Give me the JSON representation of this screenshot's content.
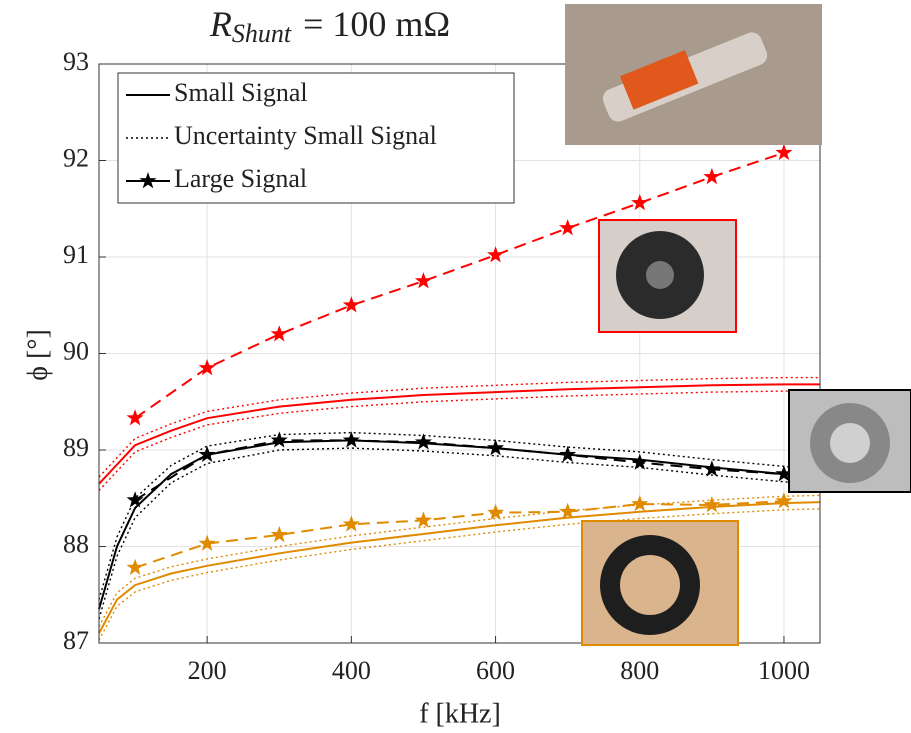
{
  "chart_data": {
    "type": "line",
    "title": {
      "main": "R",
      "sub": "Shunt",
      "rest": "= 100 mΩ"
    },
    "xlabel": "f [kHz]",
    "ylabel": "ϕ [°]",
    "xlim": [
      50,
      1050
    ],
    "ylim": [
      87,
      93
    ],
    "xticks": [
      200,
      400,
      600,
      800,
      1000
    ],
    "yticks": [
      87,
      88,
      89,
      90,
      91,
      92,
      93
    ],
    "grid": true,
    "legend": "upper left",
    "series": [
      {
        "color": "#ff0000",
        "style": "solid",
        "x": [
          50,
          100,
          150,
          200,
          300,
          400,
          500,
          600,
          700,
          800,
          900,
          1000,
          1050
        ],
        "values": [
          88.65,
          89.05,
          89.2,
          89.33,
          89.45,
          89.52,
          89.57,
          89.6,
          89.63,
          89.65,
          89.67,
          89.68,
          89.68
        ]
      },
      {
        "color": "#ff0000",
        "style": "dotted",
        "x": [
          50,
          100,
          150,
          200,
          300,
          400,
          500,
          600,
          700,
          800,
          900,
          1000,
          1050
        ],
        "values": [
          88.72,
          89.12,
          89.27,
          89.4,
          89.52,
          89.59,
          89.64,
          89.67,
          89.7,
          89.72,
          89.74,
          89.75,
          89.75
        ]
      },
      {
        "color": "#ff0000",
        "style": "dotted",
        "x": [
          50,
          100,
          150,
          200,
          300,
          400,
          500,
          600,
          700,
          800,
          900,
          1000,
          1050
        ],
        "values": [
          88.58,
          88.98,
          89.13,
          89.26,
          89.38,
          89.45,
          89.5,
          89.53,
          89.56,
          89.58,
          89.6,
          89.61,
          89.61
        ]
      },
      {
        "color": "#ff0000",
        "style": "dashed",
        "marker": "star",
        "x": [
          100,
          200,
          300,
          400,
          500,
          600,
          700,
          800,
          900,
          1000
        ],
        "values": [
          89.33,
          89.85,
          90.2,
          90.5,
          90.75,
          91.02,
          91.3,
          91.56,
          91.83,
          92.08
        ]
      },
      {
        "name": "Small Signal",
        "color": "#000000",
        "style": "solid",
        "x": [
          50,
          75,
          100,
          150,
          200,
          300,
          400,
          500,
          600,
          700,
          800,
          900,
          1000,
          1050
        ],
        "values": [
          87.35,
          88.0,
          88.4,
          88.75,
          88.95,
          89.08,
          89.1,
          89.07,
          89.02,
          88.95,
          88.9,
          88.82,
          88.75,
          88.72
        ]
      },
      {
        "name": "Uncertainty Small Signal",
        "color": "#000000",
        "style": "dotted",
        "x": [
          50,
          75,
          100,
          150,
          200,
          300,
          400,
          500,
          600,
          700,
          800,
          900,
          1000,
          1050
        ],
        "values": [
          87.45,
          88.1,
          88.5,
          88.84,
          89.04,
          89.16,
          89.18,
          89.15,
          89.1,
          89.03,
          88.98,
          88.9,
          88.83,
          88.8
        ]
      },
      {
        "color": "#000000",
        "style": "dotted",
        "x": [
          50,
          75,
          100,
          150,
          200,
          300,
          400,
          500,
          600,
          700,
          800,
          900,
          1000,
          1050
        ],
        "values": [
          87.25,
          87.9,
          88.3,
          88.66,
          88.86,
          89.0,
          89.02,
          88.99,
          88.94,
          88.87,
          88.82,
          88.74,
          88.67,
          88.64
        ]
      },
      {
        "name": "Large Signal",
        "color": "#000000",
        "style": "dashed",
        "marker": "star",
        "x": [
          100,
          200,
          300,
          400,
          500,
          600,
          700,
          800,
          900,
          1000
        ],
        "values": [
          88.48,
          88.95,
          89.1,
          89.1,
          89.08,
          89.02,
          88.95,
          88.87,
          88.8,
          88.75
        ]
      },
      {
        "color": "#e08a00",
        "style": "solid",
        "x": [
          50,
          75,
          100,
          150,
          200,
          300,
          400,
          500,
          600,
          700,
          800,
          900,
          1000,
          1050
        ],
        "values": [
          87.1,
          87.45,
          87.6,
          87.72,
          87.8,
          87.93,
          88.04,
          88.13,
          88.22,
          88.3,
          88.36,
          88.41,
          88.45,
          88.46
        ]
      },
      {
        "color": "#e08a00",
        "style": "dotted",
        "x": [
          50,
          75,
          100,
          150,
          200,
          300,
          400,
          500,
          600,
          700,
          800,
          900,
          1000,
          1050
        ],
        "values": [
          87.17,
          87.52,
          87.67,
          87.79,
          87.87,
          88.0,
          88.11,
          88.2,
          88.29,
          88.37,
          88.43,
          88.48,
          88.52,
          88.53
        ]
      },
      {
        "color": "#e08a00",
        "style": "dotted",
        "x": [
          50,
          75,
          100,
          150,
          200,
          300,
          400,
          500,
          600,
          700,
          800,
          900,
          1000,
          1050
        ],
        "values": [
          87.03,
          87.38,
          87.53,
          87.65,
          87.73,
          87.86,
          87.97,
          88.06,
          88.15,
          88.23,
          88.29,
          88.34,
          88.38,
          88.39
        ]
      },
      {
        "color": "#e08a00",
        "style": "dashed",
        "marker": "star",
        "x": [
          100,
          200,
          300,
          400,
          500,
          600,
          700,
          800,
          900,
          1000
        ],
        "values": [
          87.78,
          88.03,
          88.12,
          88.23,
          88.27,
          88.35,
          88.36,
          88.44,
          88.43,
          88.47
        ]
      }
    ]
  }
}
